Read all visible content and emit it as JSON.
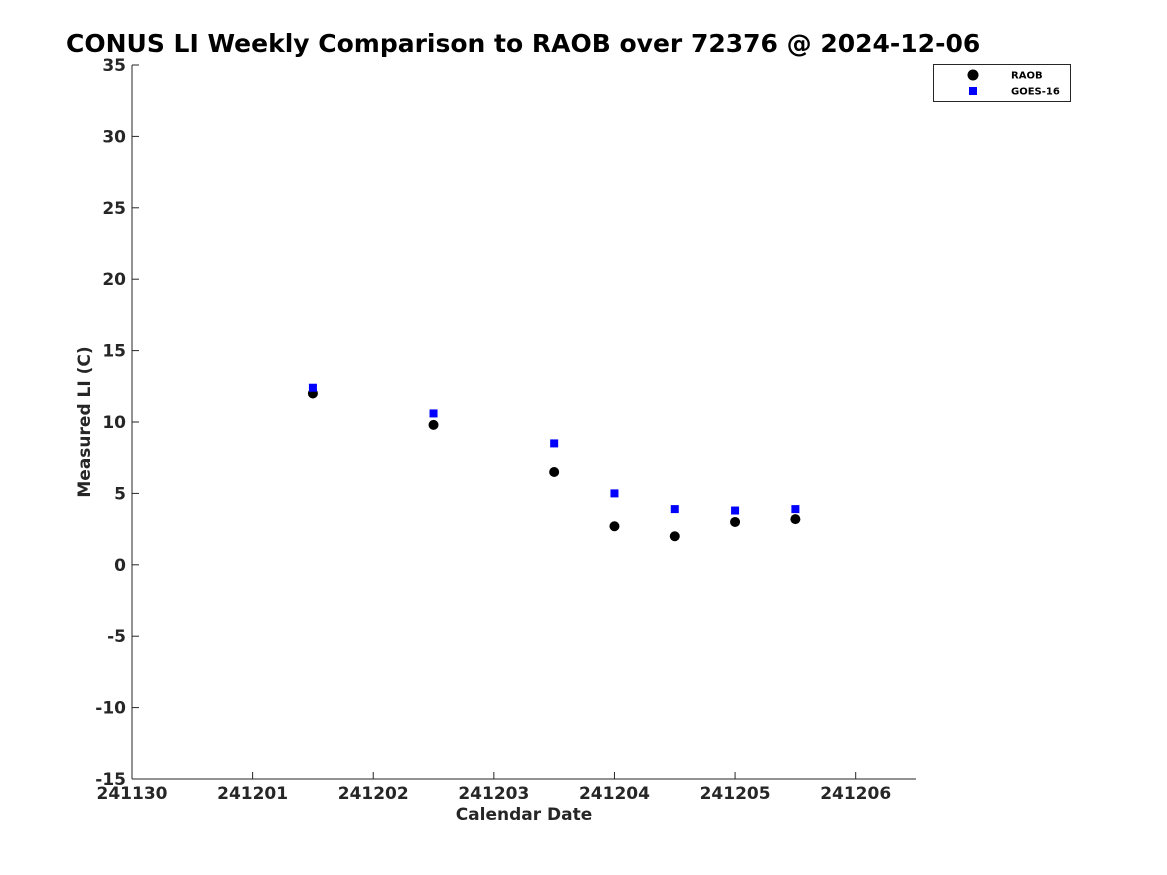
{
  "chart_data": {
    "type": "scatter",
    "title": "CONUS LI Weekly Comparison to RAOB over 72376 @ 2024-12-06",
    "xlabel": "Calendar Date",
    "ylabel": "Measured LI (C)",
    "xlim": [
      "2024-11-30",
      "2024-12-06 12:00"
    ],
    "ylim": [
      -15,
      35
    ],
    "xticks": [
      {
        "x": "2024-11-30",
        "label": "241130"
      },
      {
        "x": "2024-12-01",
        "label": "241201"
      },
      {
        "x": "2024-12-02",
        "label": "241202"
      },
      {
        "x": "2024-12-03",
        "label": "241203"
      },
      {
        "x": "2024-12-04",
        "label": "241204"
      },
      {
        "x": "2024-12-05",
        "label": "241205"
      },
      {
        "x": "2024-12-06",
        "label": "241206"
      }
    ],
    "yticks": [
      35,
      30,
      25,
      20,
      15,
      10,
      5,
      0,
      -5,
      -10,
      -15
    ],
    "grid": false,
    "legend_position": "top-right",
    "series": [
      {
        "name": "RAOB",
        "marker": "circle",
        "color": "#000000",
        "points": [
          {
            "x": "2024-12-01 12:00",
            "y": 12.0
          },
          {
            "x": "2024-12-02 12:00",
            "y": 9.8
          },
          {
            "x": "2024-12-03 12:00",
            "y": 6.5
          },
          {
            "x": "2024-12-04 00:00",
            "y": 2.7
          },
          {
            "x": "2024-12-04 12:00",
            "y": 2.0
          },
          {
            "x": "2024-12-05 00:00",
            "y": 3.0
          },
          {
            "x": "2024-12-05 12:00",
            "y": 3.2
          }
        ]
      },
      {
        "name": "GOES-16",
        "marker": "square",
        "color": "#0000ff",
        "points": [
          {
            "x": "2024-12-01 12:00",
            "y": 12.4
          },
          {
            "x": "2024-12-02 12:00",
            "y": 10.6
          },
          {
            "x": "2024-12-03 12:00",
            "y": 8.5
          },
          {
            "x": "2024-12-04 00:00",
            "y": 5.0
          },
          {
            "x": "2024-12-04 12:00",
            "y": 3.9
          },
          {
            "x": "2024-12-05 00:00",
            "y": 3.8
          },
          {
            "x": "2024-12-05 12:00",
            "y": 3.9
          }
        ]
      }
    ]
  }
}
